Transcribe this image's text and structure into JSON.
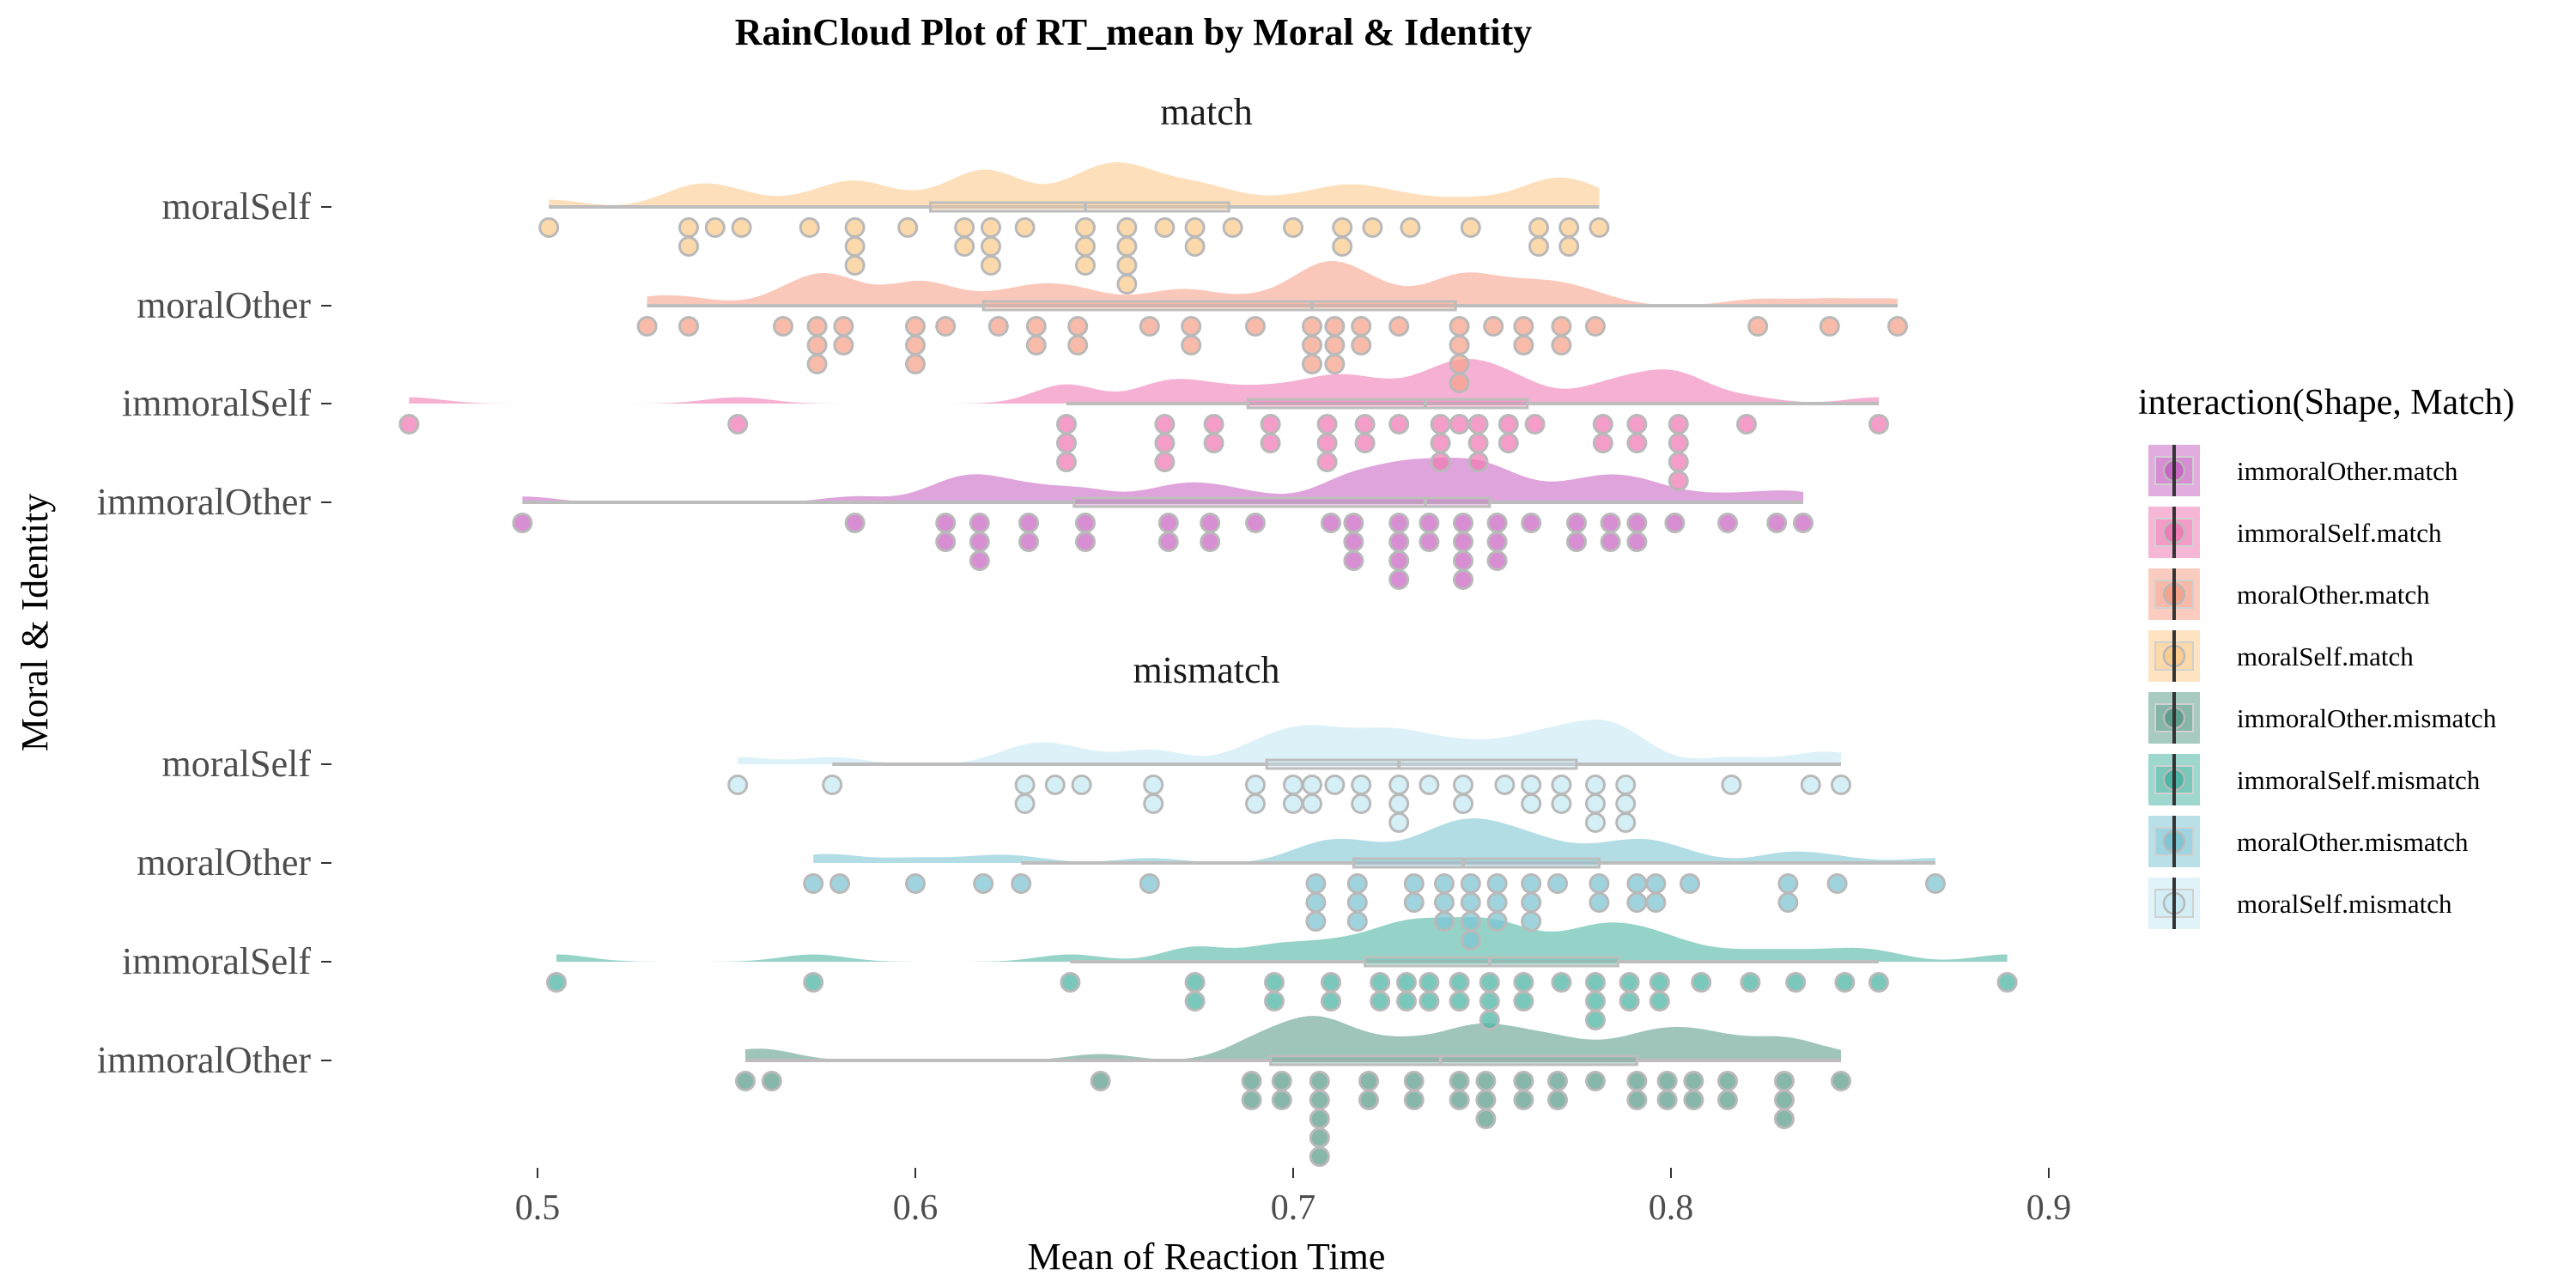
{
  "chart_data": {
    "type": "raincloud",
    "title": "RainCloud Plot of RT_mean by Moral & Identity",
    "xlabel": "Mean of Reaction Time",
    "ylabel": "Moral & Identity",
    "xlim": [
      0.455,
      0.9
    ],
    "xticks": [
      0.5,
      0.6,
      0.7,
      0.8,
      0.9
    ],
    "xtick_labels": [
      "0.5",
      "0.6",
      "0.7",
      "0.8",
      "0.9"
    ],
    "grid": false,
    "legend": {
      "title": "interaction(Shape, Match)",
      "position": "right",
      "items": [
        {
          "label": "immoralOther.match",
          "color": "#c968c3"
        },
        {
          "label": "immoralSelf.match",
          "color": "#ef7cb5"
        },
        {
          "label": "moralOther.match",
          "color": "#f6a38c"
        },
        {
          "label": "moralSelf.match",
          "color": "#fbcc8e"
        },
        {
          "label": "immoralOther.mismatch",
          "color": "#5f9e8e"
        },
        {
          "label": "immoralSelf.mismatch",
          "color": "#4eb6a4"
        },
        {
          "label": "moralOther.mismatch",
          "color": "#7fc6d4"
        },
        {
          "label": "moralSelf.mismatch",
          "color": "#c6e9f3"
        }
      ]
    },
    "panels": [
      {
        "title": "match",
        "groups": [
          {
            "label": "moralSelf",
            "series": "moralSelf.match",
            "color": "#fbcc8e",
            "box": {
              "min": 0.503,
              "q1": 0.604,
              "median": 0.645,
              "q3": 0.683,
              "max": 0.781
            },
            "points": [
              0.503,
              0.54,
              0.547,
              0.554,
              0.572,
              0.584,
              0.598,
              0.613,
              0.62,
              0.629,
              0.645,
              0.656,
              0.666,
              0.674,
              0.684,
              0.7,
              0.713,
              0.721,
              0.731,
              0.747,
              0.765,
              0.773,
              0.781,
              0.54,
              0.584,
              0.613,
              0.62,
              0.645,
              0.656,
              0.674,
              0.713,
              0.765,
              0.773,
              0.584,
              0.62,
              0.645,
              0.656,
              0.656
            ]
          },
          {
            "label": "moralOther",
            "series": "moralOther.match",
            "color": "#f6a38c",
            "box": {
              "min": 0.529,
              "q1": 0.618,
              "median": 0.705,
              "q3": 0.743,
              "max": 0.86
            },
            "points": [
              0.529,
              0.54,
              0.565,
              0.574,
              0.581,
              0.6,
              0.608,
              0.622,
              0.632,
              0.643,
              0.662,
              0.673,
              0.69,
              0.705,
              0.711,
              0.718,
              0.728,
              0.744,
              0.753,
              0.761,
              0.771,
              0.78,
              0.823,
              0.842,
              0.86,
              0.574,
              0.581,
              0.6,
              0.632,
              0.643,
              0.673,
              0.705,
              0.711,
              0.718,
              0.744,
              0.761,
              0.771,
              0.574,
              0.6,
              0.705,
              0.711,
              0.744,
              0.744
            ]
          },
          {
            "label": "immoralSelf",
            "series": "immoralSelf.match",
            "color": "#ef7cb5",
            "box": {
              "min": 0.64,
              "q1": 0.688,
              "median": 0.735,
              "q3": 0.762,
              "max": 0.855
            },
            "points": [
              0.466,
              0.553,
              0.64,
              0.666,
              0.679,
              0.694,
              0.709,
              0.719,
              0.728,
              0.739,
              0.749,
              0.757,
              0.764,
              0.782,
              0.791,
              0.802,
              0.82,
              0.855,
              0.64,
              0.666,
              0.679,
              0.694,
              0.709,
              0.719,
              0.739,
              0.749,
              0.757,
              0.782,
              0.791,
              0.802,
              0.64,
              0.666,
              0.709,
              0.739,
              0.749,
              0.802,
              0.744,
              0.802
            ]
          },
          {
            "label": "immoralOther",
            "series": "immoralOther.match",
            "color": "#c968c3",
            "box": {
              "min": 0.496,
              "q1": 0.642,
              "median": 0.735,
              "q3": 0.752,
              "max": 0.835
            },
            "points": [
              0.496,
              0.584,
              0.608,
              0.617,
              0.63,
              0.645,
              0.667,
              0.678,
              0.69,
              0.71,
              0.716,
              0.728,
              0.736,
              0.745,
              0.754,
              0.763,
              0.775,
              0.784,
              0.791,
              0.801,
              0.815,
              0.828,
              0.835,
              0.608,
              0.617,
              0.63,
              0.645,
              0.667,
              0.678,
              0.716,
              0.728,
              0.736,
              0.745,
              0.754,
              0.775,
              0.784,
              0.791,
              0.617,
              0.716,
              0.73,
              0.747,
              0.728,
              0.743,
              0.754
            ]
          }
        ]
      },
      {
        "title": "mismatch",
        "groups": [
          {
            "label": "moralSelf",
            "series": "moralSelf.mismatch",
            "color": "#c6e9f3",
            "box": {
              "min": 0.578,
              "q1": 0.693,
              "median": 0.728,
              "q3": 0.775,
              "max": 0.845
            },
            "points": [
              0.553,
              0.578,
              0.629,
              0.637,
              0.644,
              0.663,
              0.69,
              0.7,
              0.705,
              0.711,
              0.718,
              0.728,
              0.736,
              0.745,
              0.756,
              0.763,
              0.771,
              0.78,
              0.788,
              0.816,
              0.837,
              0.845,
              0.629,
              0.663,
              0.69,
              0.7,
              0.705,
              0.718,
              0.728,
              0.745,
              0.763,
              0.771,
              0.78,
              0.788,
              0.728,
              0.78,
              0.788
            ]
          },
          {
            "label": "moralOther",
            "series": "moralOther.mismatch",
            "color": "#7fc6d4",
            "box": {
              "min": 0.628,
              "q1": 0.716,
              "median": 0.745,
              "q3": 0.781,
              "max": 0.87
            },
            "points": [
              0.573,
              0.58,
              0.6,
              0.618,
              0.628,
              0.662,
              0.706,
              0.717,
              0.732,
              0.74,
              0.747,
              0.754,
              0.763,
              0.77,
              0.781,
              0.791,
              0.796,
              0.805,
              0.831,
              0.844,
              0.87,
              0.706,
              0.717,
              0.732,
              0.74,
              0.747,
              0.754,
              0.763,
              0.781,
              0.791,
              0.796,
              0.831,
              0.706,
              0.717,
              0.74,
              0.747,
              0.754,
              0.763,
              0.747
            ]
          },
          {
            "label": "immoralSelf",
            "series": "immoralSelf.mismatch",
            "color": "#4eb6a4",
            "box": {
              "min": 0.641,
              "q1": 0.719,
              "median": 0.752,
              "q3": 0.786,
              "max": 0.855
            },
            "points": [
              0.505,
              0.573,
              0.641,
              0.674,
              0.695,
              0.71,
              0.723,
              0.73,
              0.736,
              0.744,
              0.752,
              0.761,
              0.771,
              0.78,
              0.789,
              0.797,
              0.808,
              0.821,
              0.833,
              0.846,
              0.855,
              0.889,
              0.674,
              0.695,
              0.71,
              0.723,
              0.73,
              0.736,
              0.744,
              0.752,
              0.761,
              0.78,
              0.789,
              0.797,
              0.752,
              0.78
            ]
          },
          {
            "label": "immoralOther",
            "series": "immoralOther.mismatch",
            "color": "#5f9e8e",
            "box": {
              "min": 0.555,
              "q1": 0.694,
              "median": 0.739,
              "q3": 0.791,
              "max": 0.845
            },
            "points": [
              0.555,
              0.562,
              0.649,
              0.689,
              0.697,
              0.707,
              0.72,
              0.732,
              0.744,
              0.751,
              0.761,
              0.77,
              0.78,
              0.791,
              0.799,
              0.806,
              0.815,
              0.83,
              0.845,
              0.689,
              0.697,
              0.707,
              0.72,
              0.732,
              0.744,
              0.751,
              0.761,
              0.77,
              0.791,
              0.799,
              0.806,
              0.815,
              0.83,
              0.707,
              0.751,
              0.83,
              0.707,
              0.707
            ]
          }
        ]
      }
    ]
  }
}
